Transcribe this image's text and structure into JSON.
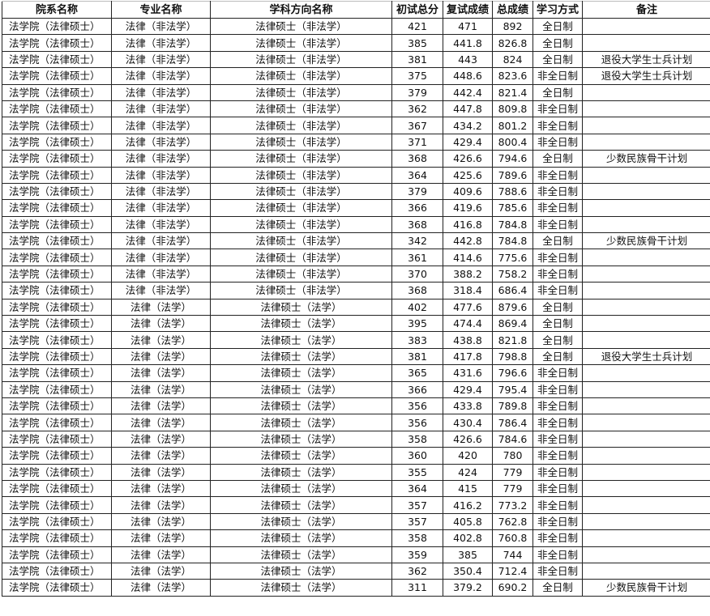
{
  "headers": [
    "院系名称",
    "专业名称",
    "学科方向名称",
    "初试总分",
    "复试成绩",
    "总成绩",
    "学习方式",
    "备注"
  ],
  "rows": [
    [
      "法学院（法律硕士）",
      "法律（非法学）",
      "法律硕士（非法学）",
      "421",
      "471",
      "892",
      "全日制",
      ""
    ],
    [
      "法学院（法律硕士）",
      "法律（非法学）",
      "法律硕士（非法学）",
      "385",
      "441.8",
      "826.8",
      "全日制",
      ""
    ],
    [
      "法学院（法律硕士）",
      "法律（非法学）",
      "法律硕士（非法学）",
      "381",
      "443",
      "824",
      "全日制",
      "退役大学生士兵计划"
    ],
    [
      "法学院（法律硕士）",
      "法律（非法学）",
      "法律硕士（非法学）",
      "375",
      "448.6",
      "823.6",
      "非全日制",
      "退役大学生士兵计划"
    ],
    [
      "法学院（法律硕士）",
      "法律（非法学）",
      "法律硕士（非法学）",
      "379",
      "442.4",
      "821.4",
      "全日制",
      ""
    ],
    [
      "法学院（法律硕士）",
      "法律（非法学）",
      "法律硕士（非法学）",
      "362",
      "447.8",
      "809.8",
      "非全日制",
      ""
    ],
    [
      "法学院（法律硕士）",
      "法律（非法学）",
      "法律硕士（非法学）",
      "367",
      "434.2",
      "801.2",
      "非全日制",
      ""
    ],
    [
      "法学院（法律硕士）",
      "法律（非法学）",
      "法律硕士（非法学）",
      "371",
      "429.4",
      "800.4",
      "非全日制",
      ""
    ],
    [
      "法学院（法律硕士）",
      "法律（非法学）",
      "法律硕士（非法学）",
      "368",
      "426.6",
      "794.6",
      "全日制",
      "少数民族骨干计划"
    ],
    [
      "法学院（法律硕士）",
      "法律（非法学）",
      "法律硕士（非法学）",
      "364",
      "425.6",
      "789.6",
      "非全日制",
      ""
    ],
    [
      "法学院（法律硕士）",
      "法律（非法学）",
      "法律硕士（非法学）",
      "379",
      "409.6",
      "788.6",
      "非全日制",
      ""
    ],
    [
      "法学院（法律硕士）",
      "法律（非法学）",
      "法律硕士（非法学）",
      "366",
      "419.6",
      "785.6",
      "非全日制",
      ""
    ],
    [
      "法学院（法律硕士）",
      "法律（非法学）",
      "法律硕士（非法学）",
      "368",
      "416.8",
      "784.8",
      "非全日制",
      ""
    ],
    [
      "法学院（法律硕士）",
      "法律（非法学）",
      "法律硕士（非法学）",
      "342",
      "442.8",
      "784.8",
      "全日制",
      "少数民族骨干计划"
    ],
    [
      "法学院（法律硕士）",
      "法律（非法学）",
      "法律硕士（非法学）",
      "361",
      "414.6",
      "775.6",
      "非全日制",
      ""
    ],
    [
      "法学院（法律硕士）",
      "法律（非法学）",
      "法律硕士（非法学）",
      "370",
      "388.2",
      "758.2",
      "非全日制",
      ""
    ],
    [
      "法学院（法律硕士）",
      "法律（非法学）",
      "法律硕士（非法学）",
      "368",
      "318.4",
      "686.4",
      "非全日制",
      ""
    ],
    [
      "法学院（法律硕士）",
      "法律（法学）",
      "法律硕士（法学）",
      "402",
      "477.6",
      "879.6",
      "全日制",
      ""
    ],
    [
      "法学院（法律硕士）",
      "法律（法学）",
      "法律硕士（法学）",
      "395",
      "474.4",
      "869.4",
      "全日制",
      ""
    ],
    [
      "法学院（法律硕士）",
      "法律（法学）",
      "法律硕士（法学）",
      "383",
      "438.8",
      "821.8",
      "全日制",
      ""
    ],
    [
      "法学院（法律硕士）",
      "法律（法学）",
      "法律硕士（法学）",
      "381",
      "417.8",
      "798.8",
      "全日制",
      "退役大学生士兵计划"
    ],
    [
      "法学院（法律硕士）",
      "法律（法学）",
      "法律硕士（法学）",
      "365",
      "431.6",
      "796.6",
      "非全日制",
      ""
    ],
    [
      "法学院（法律硕士）",
      "法律（法学）",
      "法律硕士（法学）",
      "366",
      "429.4",
      "795.4",
      "非全日制",
      ""
    ],
    [
      "法学院（法律硕士）",
      "法律（法学）",
      "法律硕士（法学）",
      "356",
      "433.8",
      "789.8",
      "非全日制",
      ""
    ],
    [
      "法学院（法律硕士）",
      "法律（法学）",
      "法律硕士（法学）",
      "356",
      "430.4",
      "786.4",
      "非全日制",
      ""
    ],
    [
      "法学院（法律硕士）",
      "法律（法学）",
      "法律硕士（法学）",
      "358",
      "426.6",
      "784.6",
      "非全日制",
      ""
    ],
    [
      "法学院（法律硕士）",
      "法律（法学）",
      "法律硕士（法学）",
      "360",
      "420",
      "780",
      "非全日制",
      ""
    ],
    [
      "法学院（法律硕士）",
      "法律（法学）",
      "法律硕士（法学）",
      "355",
      "424",
      "779",
      "非全日制",
      ""
    ],
    [
      "法学院（法律硕士）",
      "法律（法学）",
      "法律硕士（法学）",
      "364",
      "415",
      "779",
      "非全日制",
      ""
    ],
    [
      "法学院（法律硕士）",
      "法律（法学）",
      "法律硕士（法学）",
      "357",
      "416.2",
      "773.2",
      "非全日制",
      ""
    ],
    [
      "法学院（法律硕士）",
      "法律（法学）",
      "法律硕士（法学）",
      "357",
      "405.8",
      "762.8",
      "非全日制",
      ""
    ],
    [
      "法学院（法律硕士）",
      "法律（法学）",
      "法律硕士（法学）",
      "358",
      "402.8",
      "760.8",
      "非全日制",
      ""
    ],
    [
      "法学院（法律硕士）",
      "法律（法学）",
      "法律硕士（法学）",
      "359",
      "385",
      "744",
      "非全日制",
      ""
    ],
    [
      "法学院（法律硕士）",
      "法律（法学）",
      "法律硕士（法学）",
      "362",
      "350.4",
      "712.4",
      "非全日制",
      ""
    ],
    [
      "法学院（法律硕士）",
      "法律（法学）",
      "法律硕士（法学）",
      "311",
      "379.2",
      "690.2",
      "全日制",
      "少数民族骨干计划"
    ]
  ]
}
